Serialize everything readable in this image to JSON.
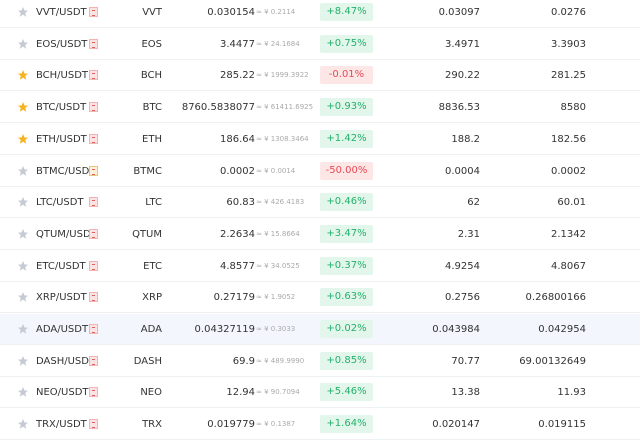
{
  "table": {
    "rows": [
      {
        "pair": "VVT/USDT",
        "coin": "VVT",
        "price": "0.030154",
        "cny": "≈ ¥ 0.2114",
        "change": "+8.47%",
        "high": "0.03097",
        "low": "0.0276",
        "starred": false
      },
      {
        "pair": "EOS/USDT",
        "coin": "EOS",
        "price": "3.4477",
        "cny": "≈ ¥ 24.1684",
        "change": "+0.75%",
        "high": "3.4971",
        "low": "3.3903",
        "starred": false
      },
      {
        "pair": "BCH/USDT",
        "coin": "BCH",
        "price": "285.22",
        "cny": "≈ ¥ 1999.3922",
        "change": "-0.01%",
        "high": "290.22",
        "low": "281.25",
        "starred": true
      },
      {
        "pair": "BTC/USDT",
        "coin": "BTC",
        "price": "8760.5838077",
        "cny": "≈ ¥ 61411.6925",
        "change": "+0.93%",
        "high": "8836.53",
        "low": "8580",
        "starred": true
      },
      {
        "pair": "ETH/USDT",
        "coin": "ETH",
        "price": "186.64",
        "cny": "≈ ¥ 1308.3464",
        "change": "+1.42%",
        "high": "188.2",
        "low": "182.56",
        "starred": true
      },
      {
        "pair": "BTMC/USDT",
        "coin": "BTMC",
        "price": "0.0002",
        "cny": "≈ ¥ 0.0014",
        "change": "-50.00%",
        "high": "0.0004",
        "low": "0.0002",
        "starred": false
      },
      {
        "pair": "LTC/USDT",
        "coin": "LTC",
        "price": "60.83",
        "cny": "≈ ¥ 426.4183",
        "change": "+0.46%",
        "high": "62",
        "low": "60.01",
        "starred": false
      },
      {
        "pair": "QTUM/USDT",
        "coin": "QTUM",
        "price": "2.2634",
        "cny": "≈ ¥ 15.8664",
        "change": "+3.47%",
        "high": "2.31",
        "low": "2.1342",
        "starred": false
      },
      {
        "pair": "ETC/USDT",
        "coin": "ETC",
        "price": "4.8577",
        "cny": "≈ ¥ 34.0525",
        "change": "+0.37%",
        "high": "4.9254",
        "low": "4.8067",
        "starred": false
      },
      {
        "pair": "XRP/USDT",
        "coin": "XRP",
        "price": "0.27179",
        "cny": "≈ ¥ 1.9052",
        "change": "+0.63%",
        "high": "0.2756",
        "low": "0.26800166",
        "starred": false
      },
      {
        "pair": "ADA/USDT",
        "coin": "ADA",
        "price": "0.04327119",
        "cny": "≈ ¥ 0.3033",
        "change": "+0.02%",
        "high": "0.043984",
        "low": "0.042954",
        "starred": false
      },
      {
        "pair": "DASH/USDT",
        "coin": "DASH",
        "price": "69.9",
        "cny": "≈ ¥ 489.9990",
        "change": "+0.85%",
        "high": "70.77",
        "low": "69.00132649",
        "starred": false
      },
      {
        "pair": "NEO/USDT",
        "coin": "NEO",
        "price": "12.94",
        "cny": "≈ ¥ 90.7094",
        "change": "+5.46%",
        "high": "13.38",
        "low": "11.93",
        "starred": false
      },
      {
        "pair": "TRX/USDT",
        "coin": "TRX",
        "price": "0.019779",
        "cny": "≈ ¥ 0.1387",
        "change": "+1.64%",
        "high": "0.020147",
        "low": "0.019115",
        "starred": false
      }
    ]
  }
}
